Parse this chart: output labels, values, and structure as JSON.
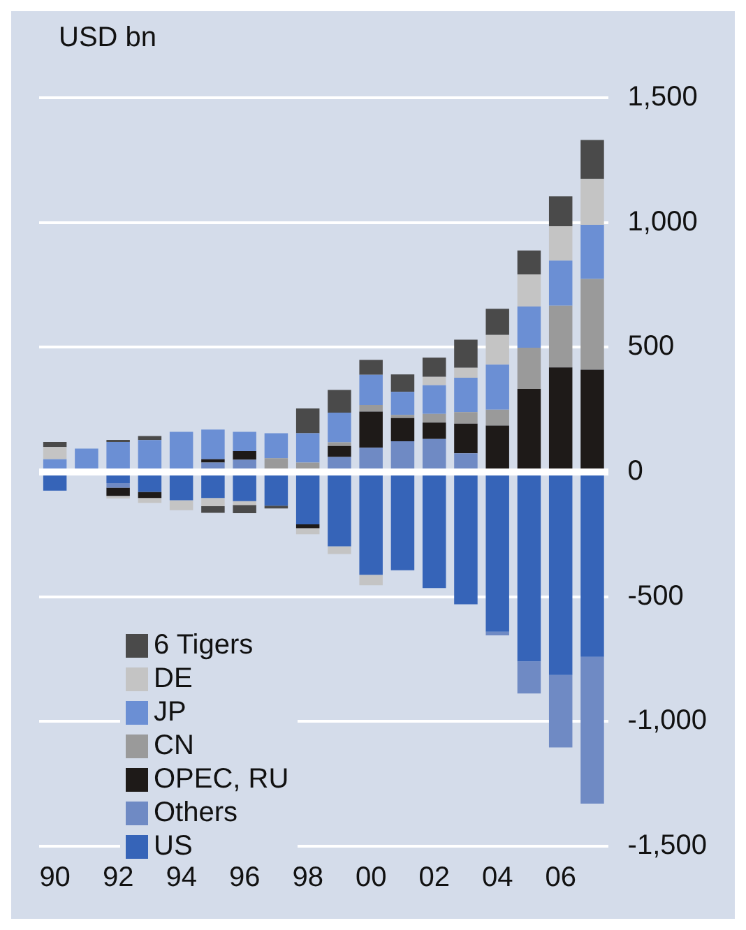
{
  "chart_data": {
    "type": "bar",
    "ylabel": "USD bn",
    "stacked": true,
    "grid": "y",
    "legend": "bottom left",
    "categories": [
      "90",
      null,
      "92",
      null,
      "94",
      null,
      "96",
      null,
      "98",
      null,
      "00",
      null,
      "02",
      null,
      "04",
      null,
      "06",
      null
    ],
    "series": [
      {
        "name": "US",
        "color": "#3664b8",
        "values": [
          -75,
          null,
          -45,
          -80,
          -113,
          -104,
          -117,
          -135,
          -210,
          -298,
          -412,
          -394,
          -465,
          -530,
          -640,
          -759,
          -814,
          -741
        ]
      },
      {
        "name": "Others",
        "color": "#6f8ac4",
        "values": [
          null,
          null,
          -18,
          null,
          null,
          38,
          49,
          null,
          null,
          60,
          97,
          123,
          132,
          75,
          -15,
          -129,
          -290,
          -588
        ]
      },
      {
        "name": "OPEC, RU",
        "color": "#1e1a18",
        "values": [
          null,
          null,
          -33,
          -24,
          null,
          13,
          35,
          null,
          -15,
          44,
          145,
          93,
          66,
          119,
          186,
          333,
          419,
          410
        ]
      },
      {
        "name": "CN",
        "color": "#9a9a9a",
        "values": [
          null,
          null,
          null,
          null,
          null,
          null,
          null,
          55,
          38,
          15,
          27,
          13,
          35,
          46,
          64,
          165,
          248,
          364
        ]
      },
      {
        "name": "JP",
        "color": "#6b8fd4",
        "values": [
          51,
          94,
          120,
          128,
          161,
          119,
          77,
          100,
          117,
          119,
          121,
          92,
          115,
          138,
          180,
          165,
          180,
          217
        ]
      },
      {
        "name": "DE",
        "color": "#c4c4c4",
        "values": [
          49,
          null,
          -10,
          -20,
          -40,
          -33,
          -15,
          null,
          -25,
          -31,
          -42,
          null,
          33,
          40,
          119,
          129,
          138,
          184
        ]
      },
      {
        "name": "6 Tigers",
        "color": "#4a4a4a",
        "values": [
          20,
          null,
          9,
          16,
          null,
          -27,
          -33,
          -11,
          100,
          91,
          59,
          70,
          77,
          112,
          105,
          96,
          120,
          156
        ]
      }
    ],
    "ylim": [
      -1500,
      1500
    ],
    "yticks": [
      {
        "value": -1500,
        "label": "-1,500"
      },
      {
        "value": -1000,
        "label": "-1,000"
      },
      -500,
      0,
      500,
      {
        "value": 1000,
        "label": "1,000"
      },
      {
        "value": 1500,
        "label": "1,500"
      }
    ]
  }
}
